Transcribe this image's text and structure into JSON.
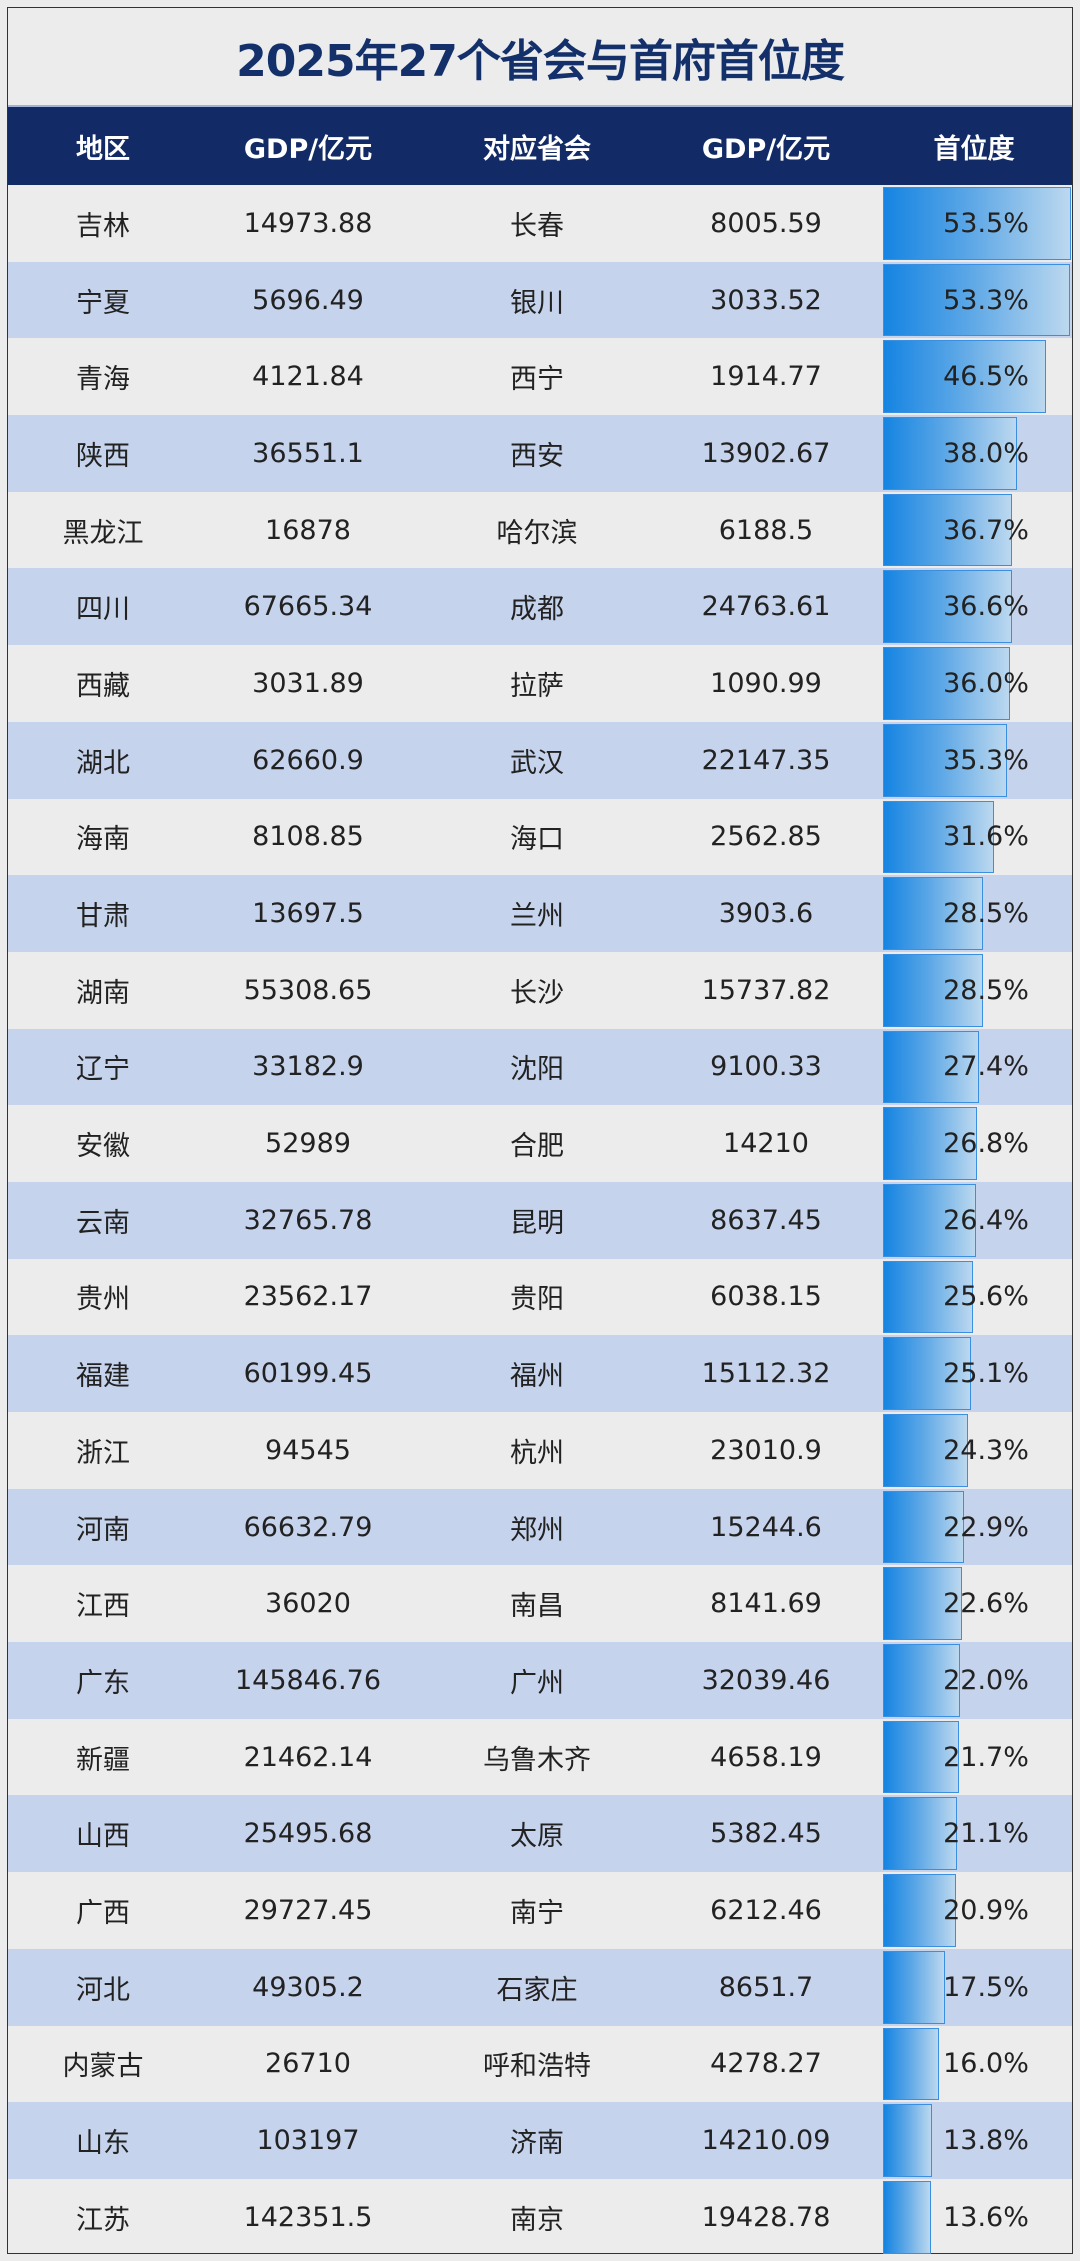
{
  "title": "2025年27个省会与首府首位度",
  "headers": [
    "地区",
    "GDP/亿元",
    "对应省会",
    "GDP/亿元",
    "首位度"
  ],
  "colors": {
    "title": "#14306b",
    "header_bg": "#122a66",
    "row_alt": "#c6d3ec",
    "row_base": "#ececec",
    "bar_start": "#1584e2",
    "bar_end": "#bcd8ef"
  },
  "rows": [
    {
      "region": "吉林",
      "gdp": "14973.88",
      "capital": "长春",
      "capital_gdp": "8005.59",
      "primacy": "53.5%",
      "primacy_value": 53.5
    },
    {
      "region": "宁夏",
      "gdp": "5696.49",
      "capital": "银川",
      "capital_gdp": "3033.52",
      "primacy": "53.3%",
      "primacy_value": 53.3
    },
    {
      "region": "青海",
      "gdp": "4121.84",
      "capital": "西宁",
      "capital_gdp": "1914.77",
      "primacy": "46.5%",
      "primacy_value": 46.5
    },
    {
      "region": "陕西",
      "gdp": "36551.1",
      "capital": "西安",
      "capital_gdp": "13902.67",
      "primacy": "38.0%",
      "primacy_value": 38.0
    },
    {
      "region": "黑龙江",
      "gdp": "16878",
      "capital": "哈尔滨",
      "capital_gdp": "6188.5",
      "primacy": "36.7%",
      "primacy_value": 36.7
    },
    {
      "region": "四川",
      "gdp": "67665.34",
      "capital": "成都",
      "capital_gdp": "24763.61",
      "primacy": "36.6%",
      "primacy_value": 36.6
    },
    {
      "region": "西藏",
      "gdp": "3031.89",
      "capital": "拉萨",
      "capital_gdp": "1090.99",
      "primacy": "36.0%",
      "primacy_value": 36.0
    },
    {
      "region": "湖北",
      "gdp": "62660.9",
      "capital": "武汉",
      "capital_gdp": "22147.35",
      "primacy": "35.3%",
      "primacy_value": 35.3
    },
    {
      "region": "海南",
      "gdp": "8108.85",
      "capital": "海口",
      "capital_gdp": "2562.85",
      "primacy": "31.6%",
      "primacy_value": 31.6
    },
    {
      "region": "甘肃",
      "gdp": "13697.5",
      "capital": "兰州",
      "capital_gdp": "3903.6",
      "primacy": "28.5%",
      "primacy_value": 28.5
    },
    {
      "region": "湖南",
      "gdp": "55308.65",
      "capital": "长沙",
      "capital_gdp": "15737.82",
      "primacy": "28.5%",
      "primacy_value": 28.5
    },
    {
      "region": "辽宁",
      "gdp": "33182.9",
      "capital": "沈阳",
      "capital_gdp": "9100.33",
      "primacy": "27.4%",
      "primacy_value": 27.4
    },
    {
      "region": "安徽",
      "gdp": "52989",
      "capital": "合肥",
      "capital_gdp": "14210",
      "primacy": "26.8%",
      "primacy_value": 26.8
    },
    {
      "region": "云南",
      "gdp": "32765.78",
      "capital": "昆明",
      "capital_gdp": "8637.45",
      "primacy": "26.4%",
      "primacy_value": 26.4
    },
    {
      "region": "贵州",
      "gdp": "23562.17",
      "capital": "贵阳",
      "capital_gdp": "6038.15",
      "primacy": "25.6%",
      "primacy_value": 25.6
    },
    {
      "region": "福建",
      "gdp": "60199.45",
      "capital": "福州",
      "capital_gdp": "15112.32",
      "primacy": "25.1%",
      "primacy_value": 25.1
    },
    {
      "region": "浙江",
      "gdp": "94545",
      "capital": "杭州",
      "capital_gdp": "23010.9",
      "primacy": "24.3%",
      "primacy_value": 24.3
    },
    {
      "region": "河南",
      "gdp": "66632.79",
      "capital": "郑州",
      "capital_gdp": "15244.6",
      "primacy": "22.9%",
      "primacy_value": 22.9
    },
    {
      "region": "江西",
      "gdp": "36020",
      "capital": "南昌",
      "capital_gdp": "8141.69",
      "primacy": "22.6%",
      "primacy_value": 22.6
    },
    {
      "region": "广东",
      "gdp": "145846.76",
      "capital": "广州",
      "capital_gdp": "32039.46",
      "primacy": "22.0%",
      "primacy_value": 22.0
    },
    {
      "region": "新疆",
      "gdp": "21462.14",
      "capital": "乌鲁木齐",
      "capital_gdp": "4658.19",
      "primacy": "21.7%",
      "primacy_value": 21.7
    },
    {
      "region": "山西",
      "gdp": "25495.68",
      "capital": "太原",
      "capital_gdp": "5382.45",
      "primacy": "21.1%",
      "primacy_value": 21.1
    },
    {
      "region": "广西",
      "gdp": "29727.45",
      "capital": "南宁",
      "capital_gdp": "6212.46",
      "primacy": "20.9%",
      "primacy_value": 20.9
    },
    {
      "region": "河北",
      "gdp": "49305.2",
      "capital": "石家庄",
      "capital_gdp": "8651.7",
      "primacy": "17.5%",
      "primacy_value": 17.5
    },
    {
      "region": "内蒙古",
      "gdp": "26710",
      "capital": "呼和浩特",
      "capital_gdp": "4278.27",
      "primacy": "16.0%",
      "primacy_value": 16.0
    },
    {
      "region": "山东",
      "gdp": "103197",
      "capital": "济南",
      "capital_gdp": "14210.09",
      "primacy": "13.8%",
      "primacy_value": 13.8
    },
    {
      "region": "江苏",
      "gdp": "142351.5",
      "capital": "南京",
      "capital_gdp": "19428.78",
      "primacy": "13.6%",
      "primacy_value": 13.6
    }
  ]
}
